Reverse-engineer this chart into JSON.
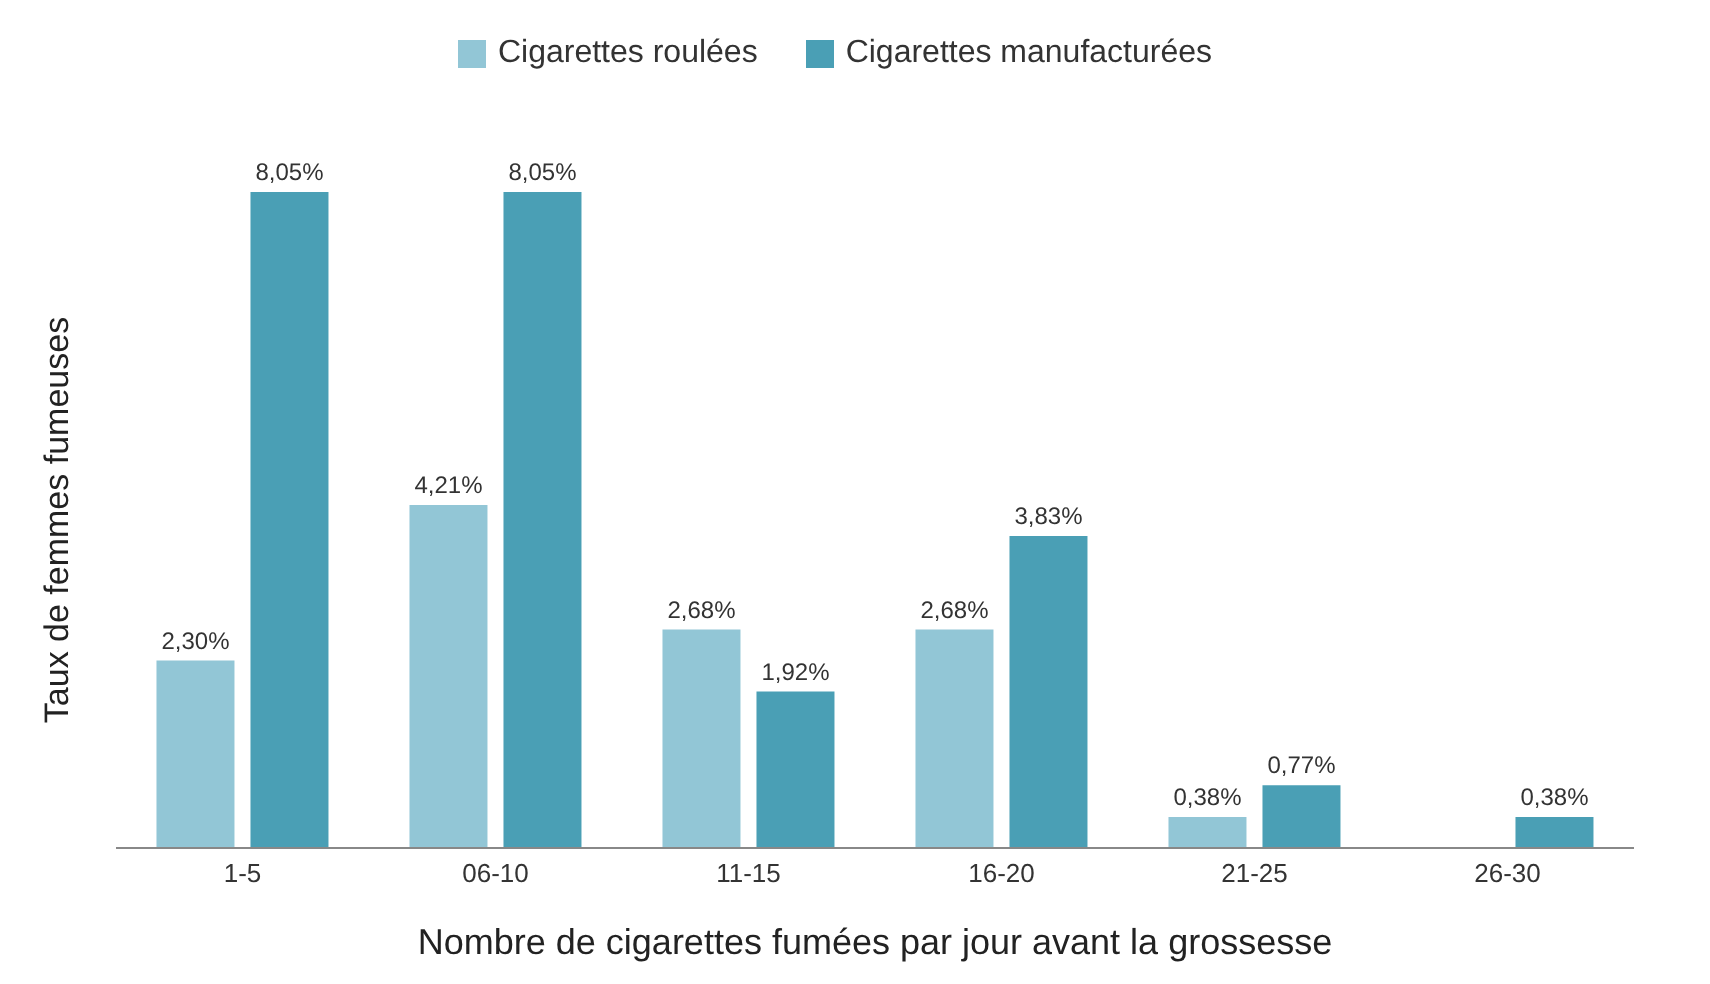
{
  "chart_data": {
    "type": "bar",
    "xlabel": "Nombre de cigarettes fumées par jour avant la grossesse",
    "ylabel": "Taux de femmes fumeuses",
    "categories": [
      "1-5",
      "06-10",
      "11-15",
      "16-20",
      "21-25",
      "26-30"
    ],
    "legend": "top",
    "series": [
      {
        "name": "Cigarettes roulées",
        "color": "#92c6d6",
        "values": [
          2.3,
          4.21,
          2.68,
          2.68,
          0.38,
          null
        ],
        "value_labels": [
          "2,30%",
          "4,21%",
          "2,68%",
          "2,68%",
          "0,38%",
          null
        ]
      },
      {
        "name": "Cigarettes manufacturées",
        "color": "#4a9fb5",
        "values": [
          8.05,
          8.05,
          1.92,
          3.83,
          0.77,
          0.38
        ],
        "value_labels": [
          "8,05%",
          "8,05%",
          "1,92%",
          "3,83%",
          "0,77%",
          "0,38%"
        ]
      }
    ]
  }
}
